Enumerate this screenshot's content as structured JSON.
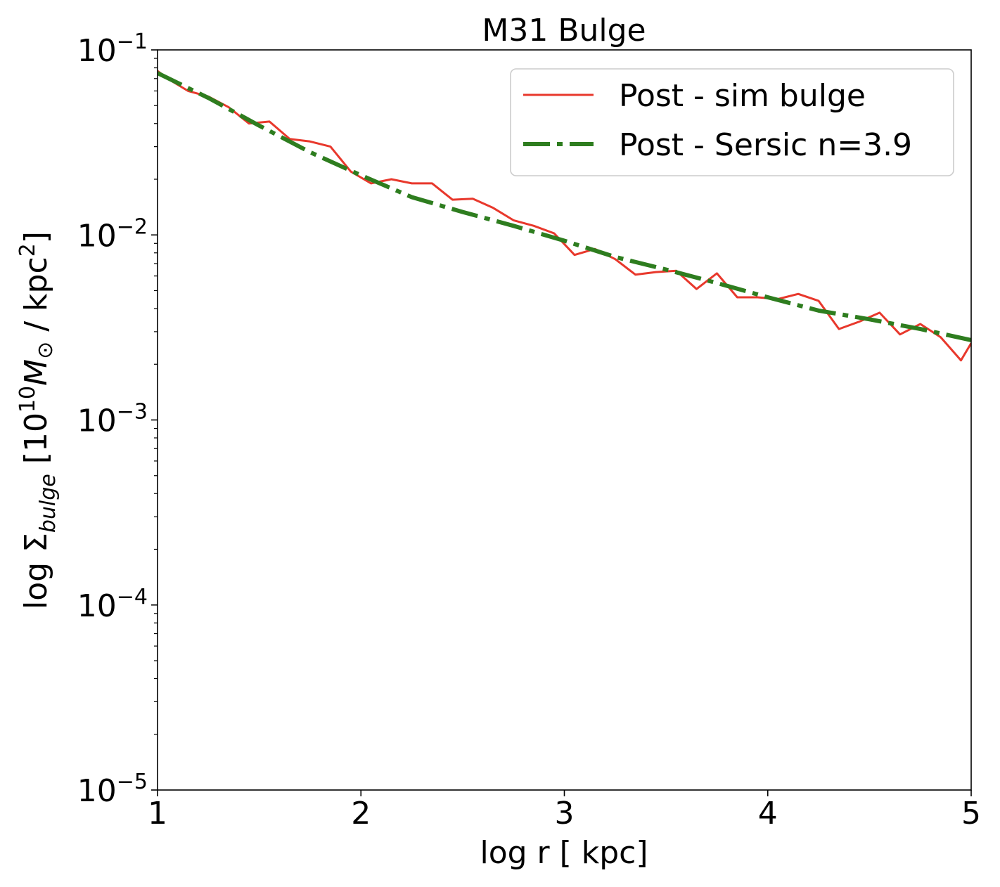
{
  "chart_data": {
    "type": "line",
    "title": "M31 Bulge",
    "xlabel": "log r [ kpc]",
    "ylabel": {
      "prefix": "log Σ",
      "subscript": "bulge",
      "bracket_open": " [10",
      "exp": "10",
      "mass": "M",
      "sun": "⊙",
      "units": "  / kpc",
      "units_exp": "2",
      "bracket_close": "]"
    },
    "xlim": [
      1,
      5
    ],
    "ylim": [
      1e-05,
      0.1
    ],
    "yscale": "log",
    "grid": false,
    "legend_position": "top-right",
    "x_ticks": [
      {
        "value": 1,
        "label": "1"
      },
      {
        "value": 2,
        "label": "2"
      },
      {
        "value": 3,
        "label": "3"
      },
      {
        "value": 4,
        "label": "4"
      },
      {
        "value": 5,
        "label": "5"
      }
    ],
    "y_ticks": [
      {
        "value": 1e-05,
        "base": "10",
        "exp": "−5"
      },
      {
        "value": 0.0001,
        "base": "10",
        "exp": "−4"
      },
      {
        "value": 0.001,
        "base": "10",
        "exp": "−3"
      },
      {
        "value": 0.01,
        "base": "10",
        "exp": "−2"
      },
      {
        "value": 0.1,
        "base": "10",
        "exp": "−1"
      }
    ],
    "series": [
      {
        "name": "Post - sim bulge",
        "color": "#e8382c",
        "style": "solid",
        "x": [
          1.0,
          1.05,
          1.15,
          1.25,
          1.35,
          1.45,
          1.55,
          1.65,
          1.75,
          1.85,
          1.95,
          2.05,
          2.15,
          2.25,
          2.35,
          2.45,
          2.55,
          2.65,
          2.75,
          2.85,
          2.95,
          3.05,
          3.15,
          3.25,
          3.35,
          3.45,
          3.55,
          3.65,
          3.75,
          3.85,
          3.95,
          4.05,
          4.15,
          4.25,
          4.35,
          4.45,
          4.55,
          4.65,
          4.75,
          4.85,
          4.95,
          5.0
        ],
        "values": [
          0.077,
          0.07,
          0.06,
          0.056,
          0.049,
          0.04,
          0.041,
          0.033,
          0.032,
          0.03,
          0.022,
          0.019,
          0.02,
          0.019,
          0.019,
          0.0155,
          0.0157,
          0.014,
          0.012,
          0.0112,
          0.0102,
          0.0078,
          0.0084,
          0.0074,
          0.0061,
          0.0063,
          0.0064,
          0.0051,
          0.0062,
          0.0046,
          0.0046,
          0.0045,
          0.0048,
          0.0044,
          0.0031,
          0.0034,
          0.0038,
          0.0029,
          0.0033,
          0.0028,
          0.0021,
          0.0026
        ]
      },
      {
        "name": "Post - Sersic n=3.9",
        "color": "#2e7d1f",
        "style": "dashdot",
        "x": [
          1.0,
          1.25,
          1.5,
          1.75,
          2.0,
          2.25,
          2.5,
          2.75,
          3.0,
          3.25,
          3.5,
          3.75,
          4.0,
          4.25,
          4.5,
          4.75,
          5.0
        ],
        "values": [
          0.075,
          0.055,
          0.039,
          0.028,
          0.021,
          0.016,
          0.0133,
          0.0112,
          0.0093,
          0.0076,
          0.0065,
          0.0055,
          0.0046,
          0.0039,
          0.0035,
          0.0031,
          0.0027
        ]
      }
    ]
  }
}
